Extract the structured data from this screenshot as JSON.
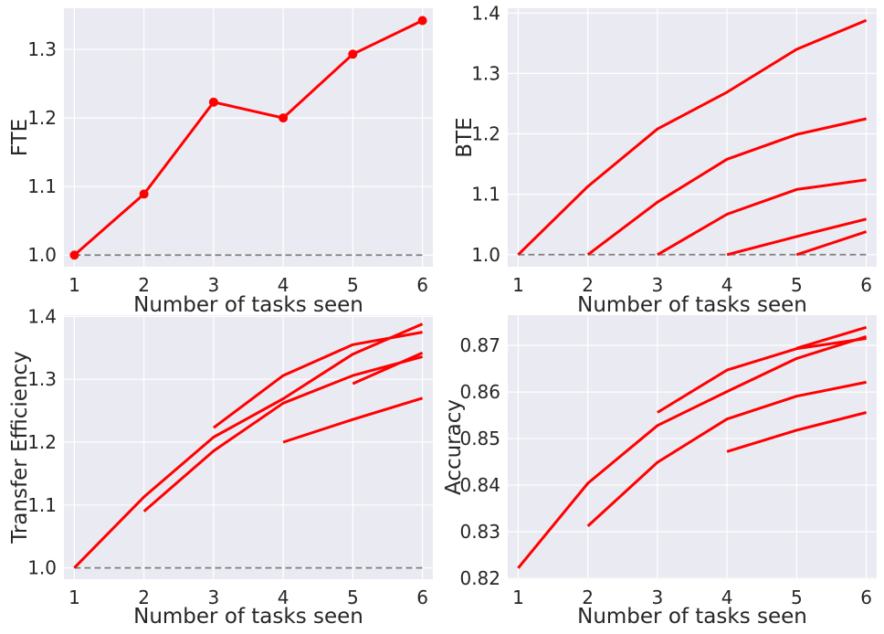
{
  "colors": {
    "series": "#ff0000",
    "baseline": "#808080",
    "background": "#eaeaf2",
    "grid": "#ffffff"
  },
  "chart_data": [
    {
      "type": "line",
      "xlabel": "Number of tasks seen",
      "ylabel": "FTE",
      "xticks": [
        1,
        2,
        3,
        4,
        5,
        6
      ],
      "yticks": [
        "1.0",
        "1.1",
        "1.2",
        "1.3"
      ],
      "xlim": [
        0.85,
        6.15
      ],
      "ylim": [
        0.983,
        1.36
      ],
      "grid": true,
      "markers": true,
      "baseline": 1.0,
      "series": [
        {
          "x": [
            1,
            2,
            3,
            4,
            5,
            6
          ],
          "y": [
            1.0,
            1.089,
            1.223,
            1.2,
            1.293,
            1.342
          ]
        }
      ]
    },
    {
      "type": "line",
      "xlabel": "Number of tasks seen",
      "ylabel": "BTE",
      "xticks": [
        1,
        2,
        3,
        4,
        5,
        6
      ],
      "yticks": [
        "1.0",
        "1.1",
        "1.2",
        "1.3",
        "1.4"
      ],
      "xlim": [
        0.85,
        6.15
      ],
      "ylim": [
        0.98,
        1.408
      ],
      "grid": true,
      "markers": false,
      "baseline": 1.0,
      "series": [
        {
          "x": [
            1,
            2,
            3,
            4,
            5,
            6
          ],
          "y": [
            1.0,
            1.113,
            1.208,
            1.269,
            1.34,
            1.388
          ]
        },
        {
          "x": [
            2,
            3,
            4,
            5,
            6
          ],
          "y": [
            1.0,
            1.087,
            1.158,
            1.199,
            1.225
          ]
        },
        {
          "x": [
            3,
            4,
            5,
            6
          ],
          "y": [
            1.0,
            1.067,
            1.108,
            1.124
          ]
        },
        {
          "x": [
            4,
            5,
            6
          ],
          "y": [
            1.0,
            1.03,
            1.059
          ]
        },
        {
          "x": [
            5,
            6
          ],
          "y": [
            1.0,
            1.038
          ]
        }
      ]
    },
    {
      "type": "line",
      "xlabel": "Number of tasks seen",
      "ylabel": "Transfer Efficiency",
      "xticks": [
        1,
        2,
        3,
        4,
        5,
        6
      ],
      "yticks": [
        "1.0",
        "1.1",
        "1.2",
        "1.3",
        "1.4"
      ],
      "xlim": [
        0.85,
        6.15
      ],
      "ylim": [
        0.982,
        1.402
      ],
      "grid": true,
      "markers": false,
      "baseline": 1.0,
      "series": [
        {
          "x": [
            1,
            2,
            3,
            4,
            5,
            6
          ],
          "y": [
            1.0,
            1.113,
            1.208,
            1.269,
            1.34,
            1.388
          ]
        },
        {
          "x": [
            2,
            3,
            4,
            5,
            6
          ],
          "y": [
            1.09,
            1.186,
            1.262,
            1.306,
            1.336
          ]
        },
        {
          "x": [
            3,
            4,
            5,
            6
          ],
          "y": [
            1.223,
            1.306,
            1.355,
            1.375
          ]
        },
        {
          "x": [
            4,
            5,
            6
          ],
          "y": [
            1.2,
            1.236,
            1.27
          ]
        },
        {
          "x": [
            5,
            6
          ],
          "y": [
            1.293,
            1.342
          ]
        }
      ]
    },
    {
      "type": "line",
      "xlabel": "Number of tasks seen",
      "ylabel": "Accuracy",
      "xticks": [
        1,
        2,
        3,
        4,
        5,
        6
      ],
      "yticks": [
        "0.82",
        "0.83",
        "0.84",
        "0.85",
        "0.86",
        "0.87"
      ],
      "xlim": [
        0.85,
        6.15
      ],
      "ylim": [
        0.8198,
        0.8765
      ],
      "grid": true,
      "markers": false,
      "series": [
        {
          "x": [
            1,
            2,
            3,
            4,
            5,
            6
          ],
          "y": [
            0.8222,
            0.8404,
            0.8528,
            0.8601,
            0.8672,
            0.8719
          ]
        },
        {
          "x": [
            2,
            3,
            4,
            5,
            6
          ],
          "y": [
            0.8312,
            0.8449,
            0.8542,
            0.8591,
            0.8621
          ]
        },
        {
          "x": [
            3,
            4,
            5,
            6
          ],
          "y": [
            0.8556,
            0.8647,
            0.8693,
            0.8715
          ]
        },
        {
          "x": [
            4,
            5,
            6
          ],
          "y": [
            0.8472,
            0.8518,
            0.8556
          ]
        },
        {
          "x": [
            5,
            6
          ],
          "y": [
            0.8694,
            0.8739
          ]
        }
      ]
    }
  ]
}
